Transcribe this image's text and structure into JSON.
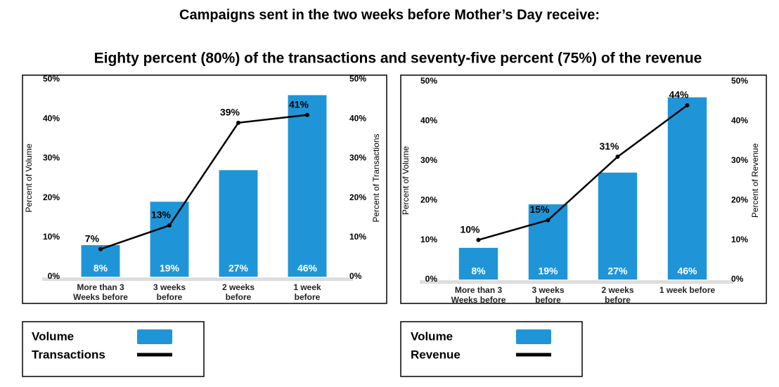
{
  "header": {
    "title": "Campaigns sent in the two weeks before Mother’s Day receive:",
    "subtitle": "Eighty percent (80%) of the transactions and seventy-five percent (75%) of the revenue"
  },
  "chart_data": [
    {
      "type": "bar",
      "categories": [
        "More than 3\nWeeks before",
        "3 weeks\nbefore",
        "2 weeks\nbefore",
        "1 week\nbefore"
      ],
      "y_label": "Percent of Volume",
      "y2_label": "Percent of Transactions",
      "ylim": [
        0,
        50
      ],
      "yticks": [
        {
          "value": 0,
          "label": "0%"
        },
        {
          "value": 10,
          "label": "10%"
        },
        {
          "value": 20,
          "label": "20%"
        },
        {
          "value": 30,
          "label": "30%"
        },
        {
          "value": 40,
          "label": "40%"
        },
        {
          "value": 50,
          "label": "50%"
        }
      ],
      "y2lim": [
        0,
        50
      ],
      "y2ticks": [
        {
          "value": 0,
          "label": "0%"
        },
        {
          "value": 10,
          "label": "10%"
        },
        {
          "value": 20,
          "label": "20%"
        },
        {
          "value": 30,
          "label": "30%"
        },
        {
          "value": 40,
          "label": "40%"
        },
        {
          "value": 50,
          "label": "50%"
        }
      ],
      "series": [
        {
          "name": "Volume",
          "kind": "bar",
          "color": "#1f95d8",
          "values": [
            8,
            19,
            27,
            46
          ],
          "value_labels": [
            "8%",
            "19%",
            "27%",
            "46%"
          ]
        },
        {
          "name": "Transactions",
          "kind": "line",
          "axis": "y2",
          "color": "#000000",
          "values": [
            7,
            13,
            39,
            41
          ],
          "value_labels": [
            "7%",
            "13%",
            "39%",
            "41%"
          ]
        }
      ]
    },
    {
      "type": "bar",
      "categories": [
        "More than 3\nWeeks before",
        "3 weeks\nbefore",
        "2 weeks\nbefore",
        "1 week before"
      ],
      "y_label": "Percent of Volume",
      "y2_label": "Percent of Revenue",
      "ylim": [
        0,
        50
      ],
      "yticks": [
        {
          "value": 0,
          "label": "0%"
        },
        {
          "value": 10,
          "label": "10%"
        },
        {
          "value": 20,
          "label": "20%"
        },
        {
          "value": 30,
          "label": "30%"
        },
        {
          "value": 40,
          "label": "40%"
        },
        {
          "value": 50,
          "label": "50%"
        }
      ],
      "y2lim": [
        0,
        50
      ],
      "y2ticks": [
        {
          "value": 0,
          "label": "0%"
        },
        {
          "value": 10,
          "label": "10%"
        },
        {
          "value": 20,
          "label": "20%"
        },
        {
          "value": 30,
          "label": "30%"
        },
        {
          "value": 40,
          "label": "40%"
        },
        {
          "value": 50,
          "label": "50%"
        }
      ],
      "series": [
        {
          "name": "Volume",
          "kind": "bar",
          "color": "#1f95d8",
          "values": [
            8,
            19,
            27,
            46
          ],
          "value_labels": [
            "8%",
            "19%",
            "27%",
            "46%"
          ]
        },
        {
          "name": "Revenue",
          "kind": "line",
          "axis": "y2",
          "color": "#000000",
          "values": [
            10,
            15,
            31,
            44
          ],
          "value_labels": [
            "10%",
            "15%",
            "31%",
            "44%"
          ]
        }
      ]
    }
  ]
}
